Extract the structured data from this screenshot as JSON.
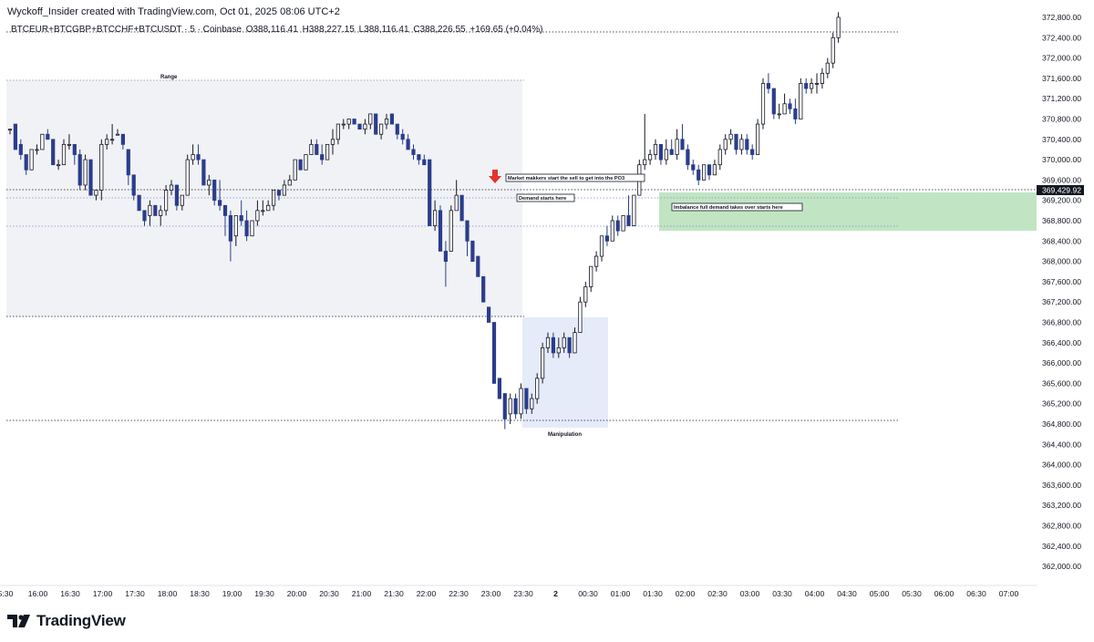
{
  "header": {
    "credit": "Wyckoff_Insider created with TradingView.com, Oct 01, 2025 08:06 UTC+2",
    "symbol": "BTCEUR+BTCGBP+BTCCHF+BTCUSDT · 5 · Coinbase",
    "open": "O388,116.41",
    "high": "H388,227.15",
    "low": "L388,116.41",
    "close": "C388,226.55",
    "change": "+169.65 (+0.04%)"
  },
  "brand": {
    "name": "TradingView"
  },
  "colors": {
    "bull": "#ffffff",
    "bull_border": "#131722",
    "bear": "#2b3d8c",
    "range_zone": "#eceef1",
    "manip_zone": "#dfe6f8",
    "demand_zone": "#b6e0b9",
    "marker": "#e5322d",
    "grid_dotted": "#131722"
  },
  "chart_data": {
    "type": "candlestick",
    "x_ticks": [
      "5:30",
      "16:00",
      "16:30",
      "17:00",
      "17:30",
      "18:00",
      "18:30",
      "19:00",
      "19:30",
      "20:00",
      "20:30",
      "21:00",
      "21:30",
      "22:00",
      "22:30",
      "23:00",
      "23:30",
      "2",
      "00:30",
      "01:00",
      "01:30",
      "02:00",
      "02:30",
      "03:00",
      "03:30",
      "04:00",
      "04:30",
      "05:00",
      "05:30",
      "06:00",
      "06:30",
      "07:00"
    ],
    "y_ticks": [
      "372,800.00",
      "372,400.00",
      "372,000.00",
      "371,600.00",
      "371,200.00",
      "370,800.00",
      "370,400.00",
      "370,000.00",
      "369,600.00",
      "369,200.00",
      "368,800.00",
      "368,400.00",
      "368,000.00",
      "367,600.00",
      "367,200.00",
      "366,800.00",
      "366,400.00",
      "366,000.00",
      "365,600.00",
      "365,200.00",
      "364,800.00",
      "364,400.00",
      "364,000.00",
      "363,600.00",
      "363,200.00",
      "362,800.00",
      "362,400.00",
      "362,000.00"
    ],
    "ylim": [
      361700,
      372900
    ],
    "current_price": "369,429.92",
    "ohlc": [
      [
        370600,
        370600,
        370500,
        370600
      ],
      [
        370700,
        370700,
        370200,
        370200
      ],
      [
        370300,
        370400,
        370000,
        370100
      ],
      [
        370100,
        370100,
        369700,
        369800
      ],
      [
        369800,
        370200,
        369800,
        370200
      ],
      [
        370200,
        370300,
        370100,
        370200
      ],
      [
        370200,
        370500,
        370200,
        370500
      ],
      [
        370500,
        370600,
        370400,
        370400
      ],
      [
        370400,
        370400,
        369900,
        369900
      ],
      [
        369900,
        370000,
        369800,
        369900
      ],
      [
        369900,
        370400,
        369900,
        370300
      ],
      [
        370300,
        370500,
        370200,
        370300
      ],
      [
        370300,
        370300,
        369900,
        370100
      ],
      [
        370100,
        370200,
        369400,
        369500
      ],
      [
        369500,
        370100,
        369400,
        370000
      ],
      [
        370000,
        370000,
        369300,
        369300
      ],
      [
        369300,
        369400,
        369200,
        369400
      ],
      [
        369400,
        370400,
        369200,
        370300
      ],
      [
        370300,
        370500,
        370200,
        370400
      ],
      [
        370400,
        370700,
        370300,
        370400
      ],
      [
        370500,
        370600,
        370500,
        370500
      ],
      [
        370500,
        370500,
        370200,
        370300
      ],
      [
        370200,
        370200,
        369500,
        369700
      ],
      [
        369700,
        369700,
        369200,
        369300
      ],
      [
        369300,
        369300,
        369000,
        369000
      ],
      [
        369000,
        369000,
        368700,
        368800
      ],
      [
        368900,
        369200,
        368700,
        369100
      ],
      [
        369100,
        369100,
        368900,
        368900
      ],
      [
        368900,
        369100,
        368700,
        369000
      ],
      [
        369000,
        369500,
        368900,
        369400
      ],
      [
        369400,
        369600,
        369300,
        369500
      ],
      [
        369500,
        369500,
        369000,
        369100
      ],
      [
        369100,
        369300,
        369000,
        369300
      ],
      [
        369300,
        370100,
        369300,
        370000
      ],
      [
        370000,
        370300,
        369900,
        370100
      ],
      [
        370100,
        370300,
        369900,
        370000
      ],
      [
        370000,
        370000,
        369500,
        369500
      ],
      [
        369500,
        369700,
        369300,
        369600
      ],
      [
        369600,
        369600,
        369100,
        369200
      ],
      [
        369200,
        369600,
        369000,
        369100
      ],
      [
        369100,
        369100,
        368500,
        368900
      ],
      [
        368900,
        369000,
        368000,
        368400
      ],
      [
        368500,
        368900,
        368300,
        368900
      ],
      [
        368900,
        369200,
        368700,
        368800
      ],
      [
        368800,
        369000,
        368400,
        368500
      ],
      [
        368500,
        368800,
        368500,
        368800
      ],
      [
        368800,
        369200,
        368700,
        369000
      ],
      [
        369000,
        369200,
        368900,
        369000
      ],
      [
        369000,
        369200,
        369000,
        369100
      ],
      [
        369100,
        369400,
        369000,
        369400
      ],
      [
        369400,
        369400,
        369200,
        369300
      ],
      [
        369300,
        369600,
        369300,
        369500
      ],
      [
        369500,
        369700,
        369500,
        369600
      ],
      [
        369600,
        370000,
        369600,
        370000
      ],
      [
        370000,
        370000,
        369800,
        369800
      ],
      [
        369800,
        370100,
        369800,
        370100
      ],
      [
        370100,
        370400,
        370100,
        370300
      ],
      [
        370300,
        370400,
        370100,
        370100
      ],
      [
        370100,
        370300,
        369900,
        370000
      ],
      [
        370000,
        370300,
        370000,
        370300
      ],
      [
        370300,
        370600,
        370100,
        370400
      ],
      [
        370400,
        370700,
        370300,
        370700
      ],
      [
        370700,
        370800,
        370600,
        370700
      ],
      [
        370700,
        370800,
        370600,
        370800
      ],
      [
        370800,
        370800,
        370700,
        370700
      ],
      [
        370700,
        370700,
        370600,
        370600
      ],
      [
        370600,
        370800,
        370500,
        370700
      ],
      [
        370700,
        370900,
        370600,
        370900
      ],
      [
        370900,
        370900,
        370500,
        370500
      ],
      [
        370500,
        370700,
        370400,
        370700
      ],
      [
        370700,
        370900,
        370600,
        370800
      ],
      [
        370900,
        370900,
        370700,
        370700
      ],
      [
        370700,
        370700,
        370400,
        370500
      ],
      [
        370500,
        370600,
        370300,
        370400
      ],
      [
        370400,
        370500,
        370200,
        370200
      ],
      [
        370200,
        370300,
        370000,
        370100
      ],
      [
        370100,
        370100,
        369900,
        370000
      ],
      [
        370000,
        370100,
        369900,
        369900
      ],
      [
        370000,
        370000,
        368700,
        368700
      ],
      [
        368700,
        369200,
        368600,
        369000
      ],
      [
        369000,
        369100,
        368200,
        368200
      ],
      [
        368200,
        368400,
        367500,
        368000
      ],
      [
        368200,
        369100,
        368200,
        369000
      ],
      [
        369000,
        369600,
        369000,
        369300
      ],
      [
        369300,
        369300,
        368800,
        368800
      ],
      [
        368800,
        368800,
        368100,
        368400
      ],
      [
        368400,
        368400,
        368000,
        368000
      ],
      [
        368100,
        368100,
        367700,
        367700
      ],
      [
        367700,
        367700,
        367200,
        367200
      ],
      [
        367100,
        367100,
        366800,
        366800
      ],
      [
        366800,
        366800,
        365600,
        365600
      ],
      [
        365700,
        365700,
        365300,
        365300
      ],
      [
        365400,
        365400,
        364700,
        364900
      ],
      [
        365000,
        365400,
        364800,
        365300
      ],
      [
        365300,
        365400,
        364900,
        365000
      ],
      [
        365000,
        365600,
        364900,
        365500
      ],
      [
        365500,
        365500,
        365000,
        365100
      ],
      [
        365100,
        365400,
        365000,
        365300
      ],
      [
        365300,
        365800,
        365200,
        365700
      ],
      [
        365700,
        366400,
        365600,
        366300
      ],
      [
        366300,
        366600,
        366200,
        366500
      ],
      [
        366500,
        366600,
        366100,
        366200
      ],
      [
        366200,
        366500,
        366100,
        366300
      ],
      [
        366300,
        366600,
        366200,
        366500
      ],
      [
        366500,
        366500,
        366100,
        366200
      ],
      [
        366200,
        366700,
        366200,
        366600
      ],
      [
        366600,
        367300,
        366600,
        367200
      ],
      [
        367200,
        367600,
        367100,
        367500
      ],
      [
        367500,
        367900,
        367400,
        367900
      ],
      [
        367900,
        368200,
        367800,
        368100
      ],
      [
        368100,
        368500,
        368000,
        368500
      ],
      [
        368500,
        368700,
        368300,
        368400
      ],
      [
        368400,
        368900,
        368400,
        368800
      ],
      [
        368800,
        368900,
        368500,
        368600
      ],
      [
        368600,
        368900,
        368600,
        368900
      ],
      [
        368900,
        369300,
        368700,
        368700
      ],
      [
        368700,
        369300,
        368700,
        369300
      ],
      [
        369300,
        370000,
        369300,
        369900
      ],
      [
        369900,
        370900,
        369800,
        370000
      ],
      [
        370000,
        370200,
        369900,
        370100
      ],
      [
        370100,
        370400,
        370000,
        370300
      ],
      [
        370300,
        370300,
        369900,
        370000
      ],
      [
        370000,
        370400,
        369900,
        370200
      ],
      [
        370200,
        370400,
        370100,
        370100
      ],
      [
        370100,
        370600,
        370000,
        370400
      ],
      [
        370400,
        370700,
        370200,
        370200
      ],
      [
        370200,
        370300,
        369800,
        369900
      ],
      [
        369900,
        370000,
        369700,
        369800
      ],
      [
        369800,
        369900,
        369500,
        369600
      ],
      [
        369600,
        369900,
        369600,
        369900
      ],
      [
        369900,
        369900,
        369600,
        369700
      ],
      [
        369700,
        370000,
        369700,
        369900
      ],
      [
        369900,
        370300,
        369800,
        370200
      ],
      [
        370200,
        370500,
        370100,
        370400
      ],
      [
        370400,
        370600,
        370300,
        370500
      ],
      [
        370500,
        370500,
        370100,
        370200
      ],
      [
        370200,
        370500,
        370100,
        370400
      ],
      [
        370400,
        370500,
        370100,
        370200
      ],
      [
        370200,
        370300,
        370000,
        370100
      ],
      [
        370100,
        370800,
        370100,
        370700
      ],
      [
        370700,
        371600,
        370600,
        371500
      ],
      [
        371500,
        371700,
        371300,
        371400
      ],
      [
        371400,
        371400,
        370800,
        370900
      ],
      [
        370900,
        371100,
        370800,
        370900
      ],
      [
        370900,
        371300,
        370900,
        371100
      ],
      [
        371100,
        371200,
        370900,
        371000
      ],
      [
        371000,
        371200,
        370700,
        370800
      ],
      [
        370800,
        371600,
        370800,
        371500
      ],
      [
        371500,
        371600,
        371300,
        371400
      ],
      [
        371400,
        371600,
        371300,
        371500
      ],
      [
        371500,
        371700,
        371300,
        371500
      ],
      [
        371500,
        371800,
        371400,
        371700
      ],
      [
        371700,
        372000,
        371600,
        371900
      ],
      [
        371900,
        372500,
        371800,
        372400
      ],
      [
        372400,
        372900,
        372300,
        372800
      ]
    ],
    "zones": [
      {
        "label": "Range"
      },
      {
        "label": "Manipulation"
      },
      {
        "label": "Imbalance full demand takes over starts here"
      }
    ],
    "annotations": {
      "market_makers": "Market makkers start the sell to get into the PO3",
      "demand_starts": "Demand starts here",
      "range": "Range",
      "manipulation": "Manipulation",
      "imbalance": "Imbalance full demand takes over starts here"
    }
  }
}
